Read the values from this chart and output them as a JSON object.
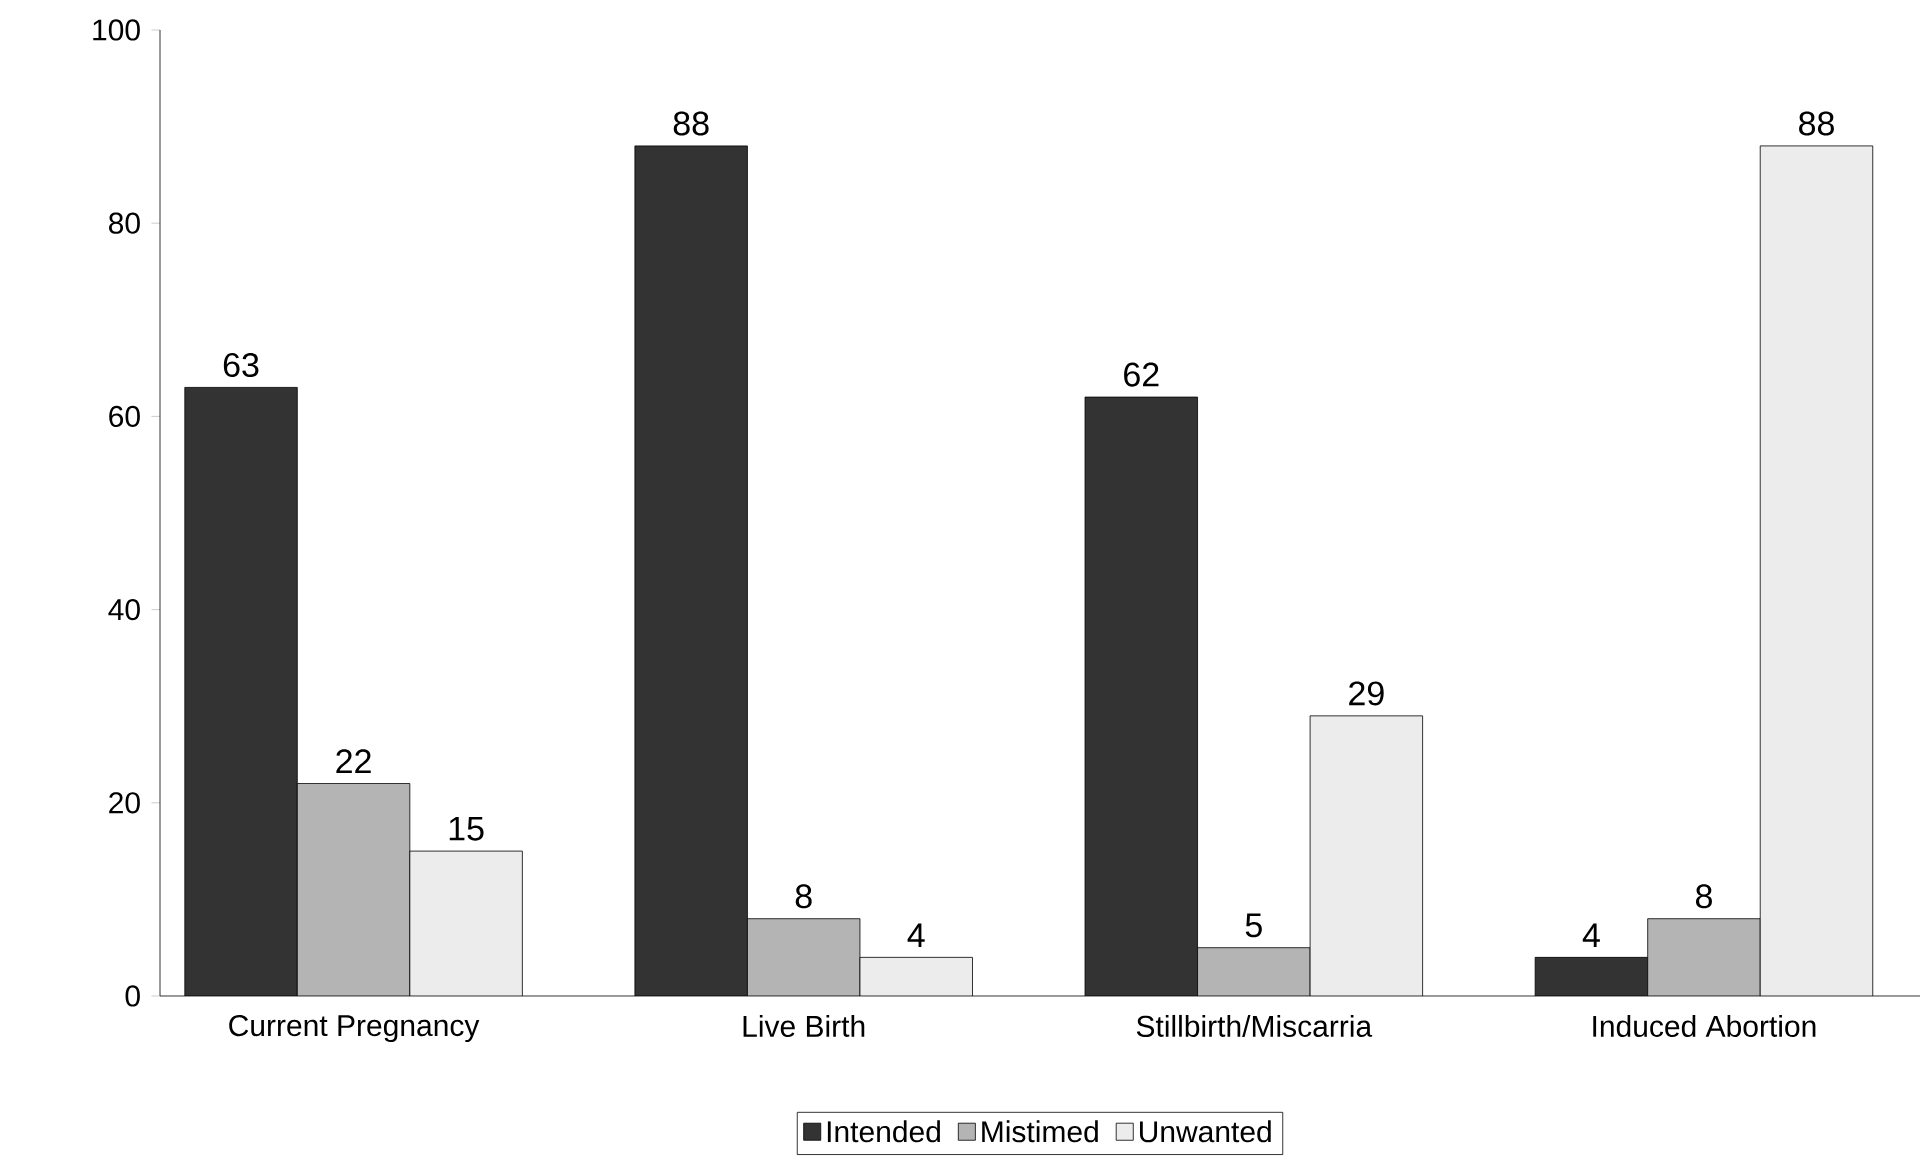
{
  "chart_data": {
    "type": "bar",
    "categories": [
      "Current Pregnancy",
      "Live Birth",
      "Stillbirth/Miscarria",
      "Induced Abortion"
    ],
    "series": [
      {
        "name": "Intended",
        "color": "#333333",
        "values": [
          63,
          88,
          62,
          4
        ]
      },
      {
        "name": "Mistimed",
        "color": "#b4b4b4",
        "values": [
          22,
          8,
          5,
          8
        ]
      },
      {
        "name": "Unwanted",
        "color": "#ececec",
        "values": [
          15,
          4,
          29,
          88
        ]
      }
    ],
    "ylim": [
      0,
      100
    ],
    "yticks": [
      0,
      20,
      40,
      60,
      80,
      100
    ],
    "data_labels": true,
    "legend": "bottom",
    "grid": false
  }
}
